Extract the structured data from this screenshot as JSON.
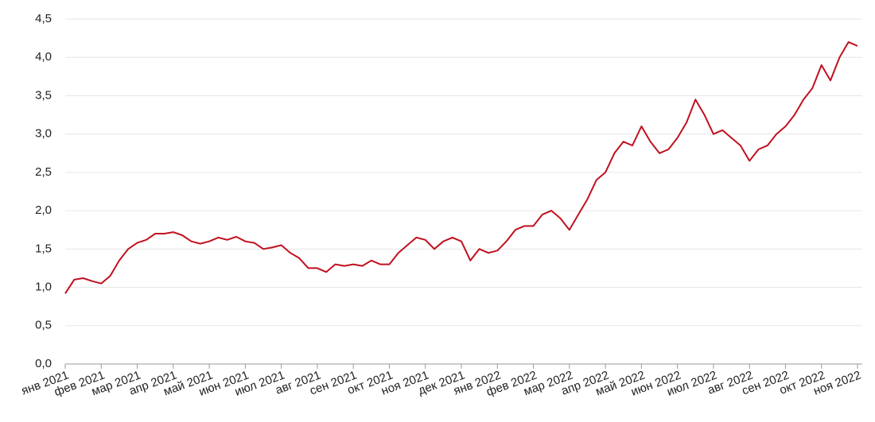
{
  "chart_data": {
    "type": "line",
    "color": "#c0111f",
    "grid": true,
    "ylim": [
      0,
      4.5
    ],
    "yticks": [
      {
        "value": 0,
        "label": "0,0"
      },
      {
        "value": 0.5,
        "label": "0,5"
      },
      {
        "value": 1,
        "label": "1,0"
      },
      {
        "value": 1.5,
        "label": "1,5"
      },
      {
        "value": 2,
        "label": "2,0"
      },
      {
        "value": 2.5,
        "label": "2,5"
      },
      {
        "value": 3,
        "label": "3,0"
      },
      {
        "value": 3.5,
        "label": "3,5"
      },
      {
        "value": 4,
        "label": "4,0"
      },
      {
        "value": 4.5,
        "label": "4,5"
      }
    ],
    "categories": [
      "янв 2021",
      null,
      null,
      null,
      "фев 2021",
      null,
      null,
      null,
      "мар 2021",
      null,
      null,
      null,
      "апр 2021",
      null,
      null,
      null,
      "май 2021",
      null,
      null,
      null,
      "июн 2021",
      null,
      null,
      null,
      "июл 2021",
      null,
      null,
      null,
      "авг 2021",
      null,
      null,
      null,
      "сен 2021",
      null,
      null,
      null,
      "окт 2021",
      null,
      null,
      null,
      "ноя 2021",
      null,
      null,
      null,
      "дек 2021",
      null,
      null,
      null,
      "янв 2022",
      null,
      null,
      null,
      "фев 2022",
      null,
      null,
      null,
      "мар 2022",
      null,
      null,
      null,
      "апр 2022",
      null,
      null,
      null,
      "май 2022",
      null,
      null,
      null,
      "июн 2022",
      null,
      null,
      null,
      "июл 2022",
      null,
      null,
      null,
      "авг 2022",
      null,
      null,
      null,
      "сен 2022",
      null,
      null,
      null,
      "окт 2022",
      null,
      null,
      null,
      "ноя 2022"
    ],
    "values": [
      0.92,
      1.1,
      1.12,
      1.08,
      1.05,
      1.15,
      1.35,
      1.5,
      1.58,
      1.62,
      1.7,
      1.7,
      1.72,
      1.68,
      1.6,
      1.57,
      1.6,
      1.65,
      1.62,
      1.66,
      1.6,
      1.58,
      1.5,
      1.52,
      1.55,
      1.45,
      1.38,
      1.25,
      1.25,
      1.2,
      1.3,
      1.28,
      1.3,
      1.28,
      1.35,
      1.3,
      1.3,
      1.45,
      1.55,
      1.65,
      1.62,
      1.5,
      1.6,
      1.65,
      1.6,
      1.35,
      1.5,
      1.45,
      1.48,
      1.6,
      1.75,
      1.8,
      1.8,
      1.95,
      2.0,
      1.9,
      1.75,
      1.95,
      2.15,
      2.4,
      2.5,
      2.75,
      2.9,
      2.85,
      3.1,
      2.9,
      2.75,
      2.8,
      2.95,
      3.15,
      3.45,
      3.25,
      3.0,
      3.05,
      2.95,
      2.85,
      2.65,
      2.8,
      2.85,
      3.0,
      3.1,
      3.25,
      3.45,
      3.6,
      3.9,
      3.7,
      4.0,
      4.2,
      4.15
    ]
  }
}
